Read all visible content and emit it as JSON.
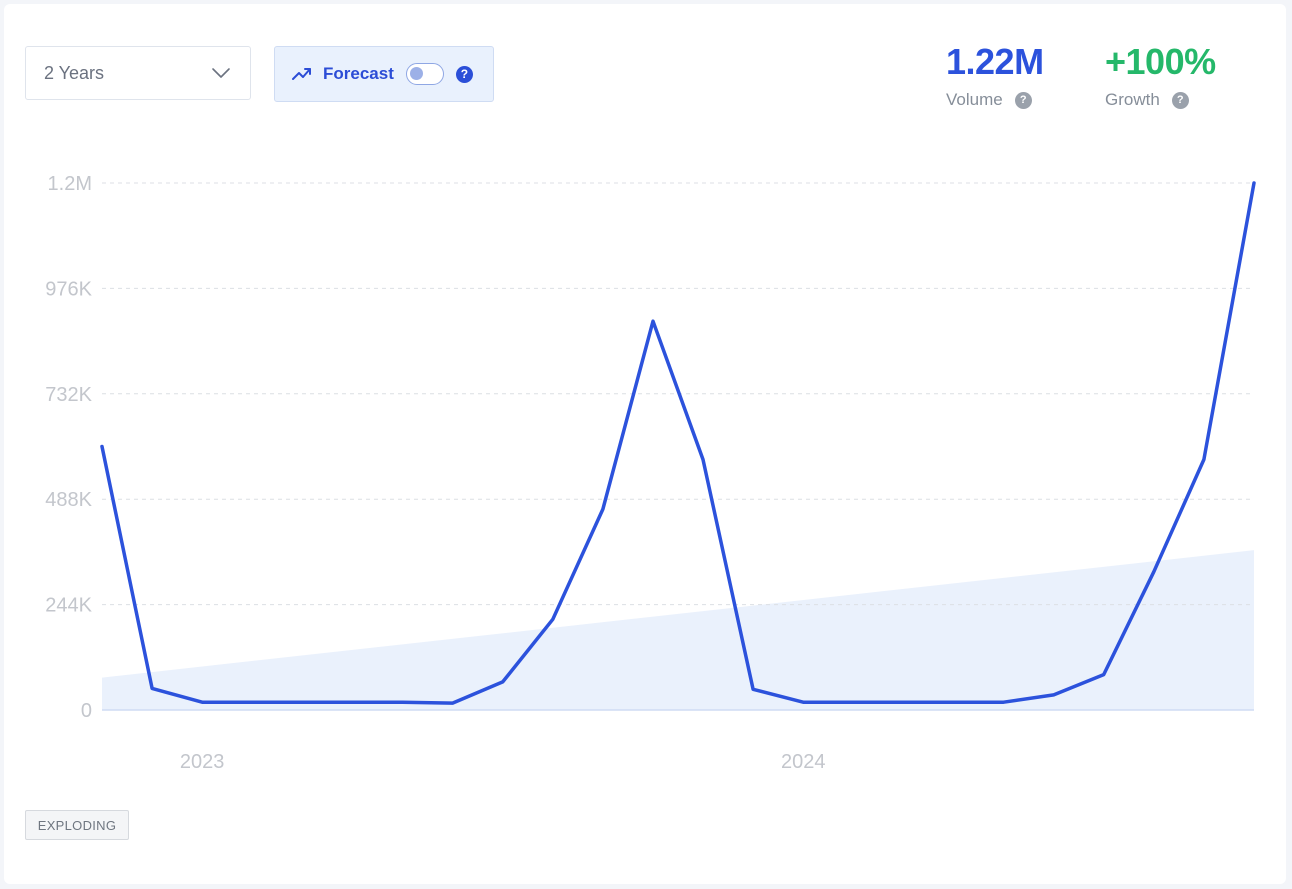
{
  "controls": {
    "timeframe": "2 Years",
    "forecast_label": "Forecast",
    "forecast_on": false,
    "help_glyph": "?"
  },
  "stats": {
    "volume_value": "1.22M",
    "volume_label": "Volume",
    "growth_value": "+100%",
    "growth_label": "Growth"
  },
  "badge": "EXPLODING",
  "colors": {
    "accent": "#2c52dc",
    "growth": "#25b86a",
    "trend_fill": "#e6effc"
  },
  "chart_data": {
    "type": "line",
    "title": "",
    "xlabel": "",
    "ylabel": "",
    "x": [
      "2022-12",
      "2023-01",
      "2023-02",
      "2023-03",
      "2023-04",
      "2023-05",
      "2023-06",
      "2023-07",
      "2023-08",
      "2023-09",
      "2023-10",
      "2023-11",
      "2023-12",
      "2024-01",
      "2024-02",
      "2024-03",
      "2024-04",
      "2024-05",
      "2024-06",
      "2024-07",
      "2024-08",
      "2024-09",
      "2024-10",
      "2024-11"
    ],
    "series": [
      {
        "values": [
          610000,
          50000,
          18000,
          18000,
          18000,
          18000,
          18000,
          16000,
          65000,
          210000,
          465000,
          900000,
          580000,
          48000,
          18000,
          18000,
          18000,
          18000,
          18000,
          35000,
          82000,
          320000,
          580000,
          1220000
        ]
      }
    ],
    "trend": {
      "start": 75000,
      "end": 370000
    },
    "ylim": [
      0,
      1220000
    ],
    "yticks": [
      "0",
      "244K",
      "488K",
      "732K",
      "976K",
      "1.2M"
    ],
    "xtick_labels": [
      {
        "label": "2023",
        "at": "2023-02"
      },
      {
        "label": "2024",
        "at": "2024-02"
      }
    ],
    "grid": true,
    "legend": "none"
  }
}
